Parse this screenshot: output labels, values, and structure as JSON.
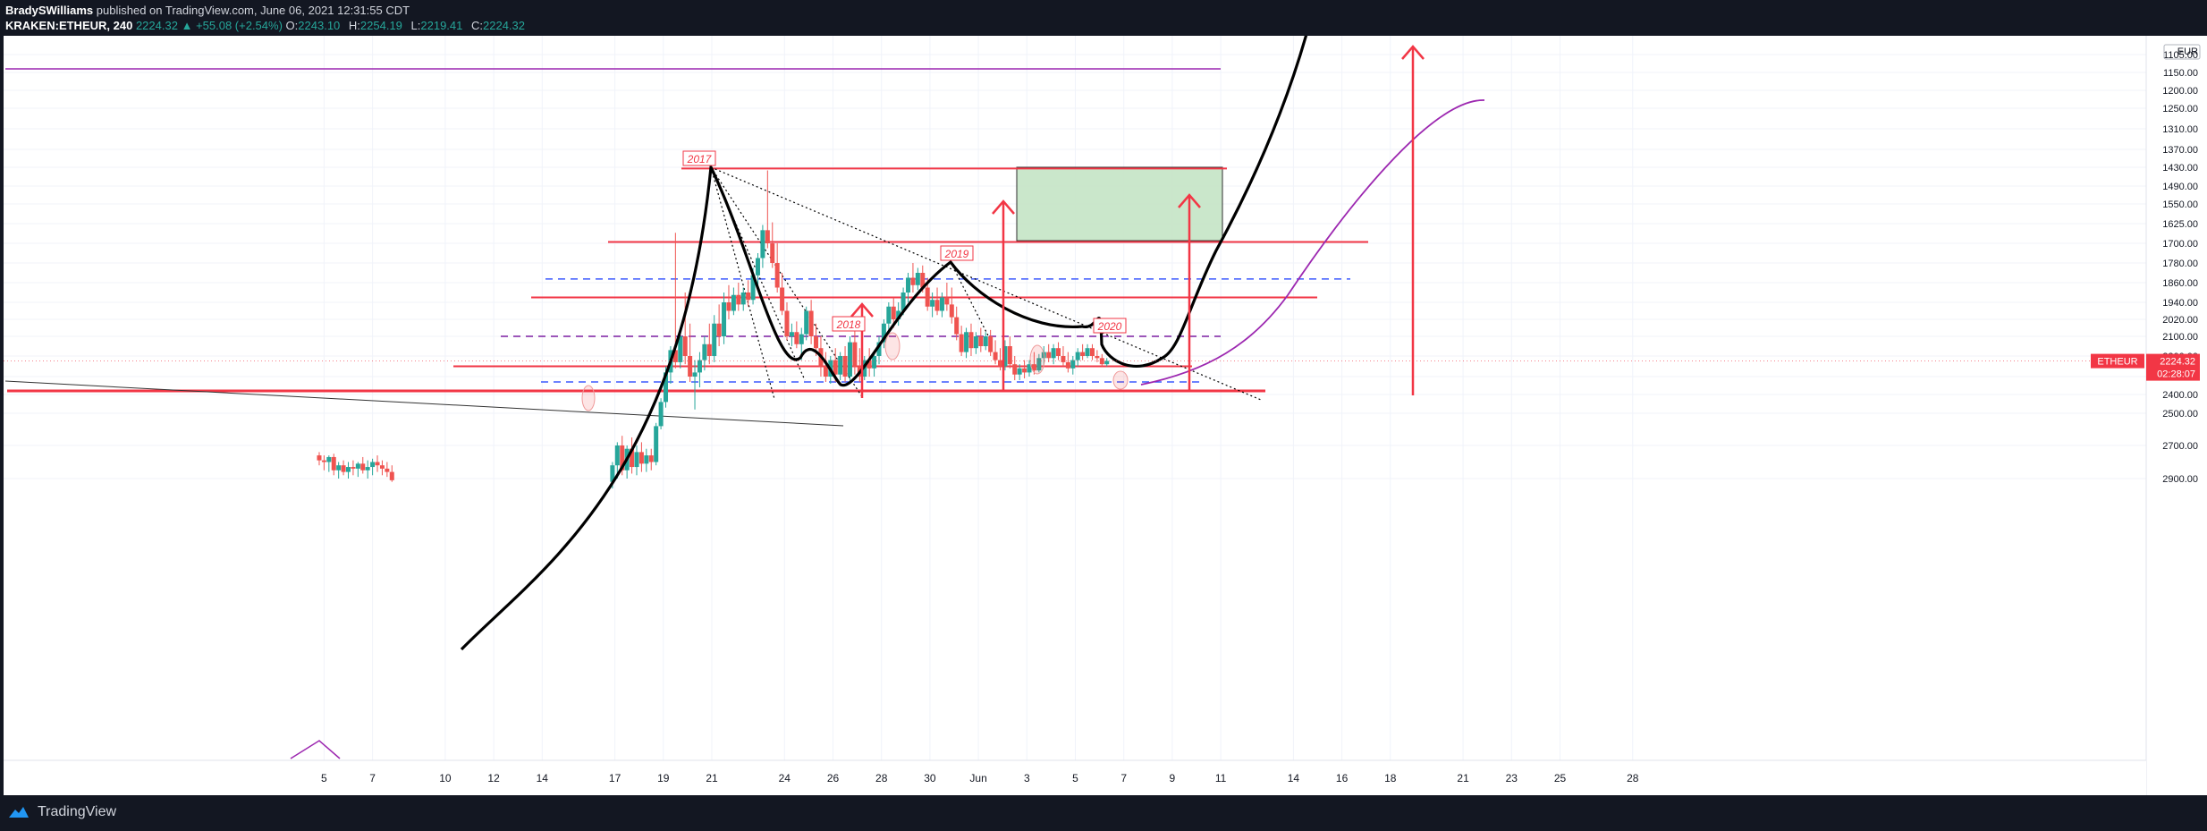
{
  "header": {
    "author": "BradySWilliams",
    "published": "published on TradingView.com, June 06, 2021 12:31:55 CDT",
    "symbol": "KRAKEN:ETHEUR, 240",
    "last": "2224.32",
    "change": "+55.08 (+2.54%)",
    "o_label": "O:",
    "o_value": "2243.10",
    "h_label": "H:",
    "h_value": "2254.19",
    "l_label": "L:",
    "l_value": "2219.41",
    "c_label": "C:",
    "c_value": "2224.32"
  },
  "footer": {
    "brand": "TradingView"
  },
  "colors": {
    "background": "#131722",
    "chart_bg": "#ffffff",
    "up": "#26a69a",
    "down": "#ef5350",
    "level": "#f23645",
    "purple": "#9c27b0",
    "dashed_blue": "#3d5afe",
    "dashed_purple": "#7b1fa2",
    "target_box": "#c8e6c9",
    "curve": "#000000"
  },
  "chart_data": {
    "type": "candlestick",
    "instrument": "ETHEUR",
    "timeframe": "240",
    "currency": "EUR",
    "y_axis": {
      "invert": true,
      "ticks": [
        {
          "label": "1105.00",
          "value": 1105
        },
        {
          "label": "1150.00",
          "value": 1150
        },
        {
          "label": "1200.00",
          "value": 1200
        },
        {
          "label": "1250.00",
          "value": 1250
        },
        {
          "label": "1310.00",
          "value": 1310
        },
        {
          "label": "1370.00",
          "value": 1370
        },
        {
          "label": "1430.00",
          "value": 1430
        },
        {
          "label": "1490.00",
          "value": 1490
        },
        {
          "label": "1550.00",
          "value": 1550
        },
        {
          "label": "1625.00",
          "value": 1625
        },
        {
          "label": "1700.00",
          "value": 1700
        },
        {
          "label": "1780.00",
          "value": 1780
        },
        {
          "label": "1860.00",
          "value": 1860
        },
        {
          "label": "1940.00",
          "value": 1940
        },
        {
          "label": "2020.00",
          "value": 2020
        },
        {
          "label": "2100.00",
          "value": 2100
        },
        {
          "label": "2200.00",
          "value": 2200
        },
        {
          "label": "2300.00",
          "value": 2300
        },
        {
          "label": "2400.00",
          "value": 2400
        },
        {
          "label": "2500.00",
          "value": 2500
        },
        {
          "label": "2700.00",
          "value": 2700
        },
        {
          "label": "2900.00",
          "value": 2900
        }
      ]
    },
    "x_axis": {
      "ticks": [
        {
          "label": "5",
          "day": 5
        },
        {
          "label": "7",
          "day": 7
        },
        {
          "label": "10",
          "day": 10
        },
        {
          "label": "12",
          "day": 12
        },
        {
          "label": "14",
          "day": 14
        },
        {
          "label": "17",
          "day": 17
        },
        {
          "label": "19",
          "day": 19
        },
        {
          "label": "21",
          "day": 21
        },
        {
          "label": "24",
          "day": 24
        },
        {
          "label": "26",
          "day": 26
        },
        {
          "label": "28",
          "day": 28
        },
        {
          "label": "30",
          "day": 30
        },
        {
          "label": "Jun",
          "day": 32
        },
        {
          "label": "3",
          "day": 34
        },
        {
          "label": "5",
          "day": 36
        },
        {
          "label": "7",
          "day": 38
        },
        {
          "label": "9",
          "day": 40
        },
        {
          "label": "11",
          "day": 42
        },
        {
          "label": "14",
          "day": 45
        },
        {
          "label": "16",
          "day": 47
        },
        {
          "label": "18",
          "day": 49
        },
        {
          "label": "21",
          "day": 52
        },
        {
          "label": "23",
          "day": 54
        },
        {
          "label": "25",
          "day": 56
        },
        {
          "label": "28",
          "day": 59
        }
      ]
    },
    "last_price_tag": {
      "symbol": "ETHEUR",
      "price": "2224.32",
      "countdown": "02:28:07",
      "value": 2224.32
    },
    "annotations": [
      "2017",
      "2018",
      "2019",
      "2020"
    ],
    "target_zone": {
      "price_top": 1430,
      "price_bottom": 1690
    },
    "series": [
      {
        "day": 4.8,
        "o": 2760,
        "h": 2740,
        "l": 2820,
        "c": 2790
      },
      {
        "day": 5.0,
        "o": 2790,
        "h": 2760,
        "l": 2850,
        "c": 2800
      },
      {
        "day": 5.2,
        "o": 2800,
        "h": 2760,
        "l": 2860,
        "c": 2770
      },
      {
        "day": 5.4,
        "o": 2770,
        "h": 2750,
        "l": 2880,
        "c": 2850
      },
      {
        "day": 5.6,
        "o": 2850,
        "h": 2800,
        "l": 2900,
        "c": 2820
      },
      {
        "day": 5.8,
        "o": 2820,
        "h": 2790,
        "l": 2880,
        "c": 2860
      },
      {
        "day": 6.0,
        "o": 2860,
        "h": 2800,
        "l": 2900,
        "c": 2830
      },
      {
        "day": 6.2,
        "o": 2830,
        "h": 2790,
        "l": 2880,
        "c": 2840
      },
      {
        "day": 6.4,
        "o": 2840,
        "h": 2800,
        "l": 2890,
        "c": 2810
      },
      {
        "day": 6.6,
        "o": 2810,
        "h": 2770,
        "l": 2870,
        "c": 2850
      },
      {
        "day": 6.8,
        "o": 2850,
        "h": 2790,
        "l": 2900,
        "c": 2830
      },
      {
        "day": 7.0,
        "o": 2830,
        "h": 2780,
        "l": 2880,
        "c": 2800
      },
      {
        "day": 7.2,
        "o": 2800,
        "h": 2760,
        "l": 2860,
        "c": 2820
      },
      {
        "day": 7.4,
        "o": 2820,
        "h": 2790,
        "l": 2880,
        "c": 2840
      },
      {
        "day": 7.6,
        "o": 2840,
        "h": 2800,
        "l": 2890,
        "c": 2860
      },
      {
        "day": 7.8,
        "o": 2860,
        "h": 2820,
        "l": 2920,
        "c": 2910
      },
      {
        "day": 16.9,
        "o": 2920,
        "h": 2800,
        "l": 2960,
        "c": 2820
      },
      {
        "day": 17.1,
        "o": 2820,
        "h": 2680,
        "l": 2900,
        "c": 2700
      },
      {
        "day": 17.3,
        "o": 2700,
        "h": 2640,
        "l": 2880,
        "c": 2850
      },
      {
        "day": 17.5,
        "o": 2850,
        "h": 2700,
        "l": 2900,
        "c": 2720
      },
      {
        "day": 17.7,
        "o": 2720,
        "h": 2650,
        "l": 2870,
        "c": 2830
      },
      {
        "day": 17.9,
        "o": 2830,
        "h": 2700,
        "l": 2880,
        "c": 2740
      },
      {
        "day": 18.1,
        "o": 2740,
        "h": 2680,
        "l": 2860,
        "c": 2810
      },
      {
        "day": 18.3,
        "o": 2810,
        "h": 2720,
        "l": 2860,
        "c": 2760
      },
      {
        "day": 18.5,
        "o": 2760,
        "h": 2720,
        "l": 2850,
        "c": 2800
      },
      {
        "day": 18.7,
        "o": 2800,
        "h": 2560,
        "l": 2820,
        "c": 2580
      },
      {
        "day": 18.9,
        "o": 2580,
        "h": 2420,
        "l": 2600,
        "c": 2440
      },
      {
        "day": 19.1,
        "o": 2440,
        "h": 2250,
        "l": 2470,
        "c": 2280
      },
      {
        "day": 19.3,
        "o": 2280,
        "h": 2150,
        "l": 2340,
        "c": 2170
      },
      {
        "day": 19.5,
        "o": 2170,
        "h": 1660,
        "l": 2260,
        "c": 2230
      },
      {
        "day": 19.7,
        "o": 2230,
        "h": 2080,
        "l": 2260,
        "c": 2100
      },
      {
        "day": 19.9,
        "o": 2100,
        "h": 1900,
        "l": 2240,
        "c": 2200
      },
      {
        "day": 20.1,
        "o": 2200,
        "h": 2040,
        "l": 2330,
        "c": 2300
      },
      {
        "day": 20.3,
        "o": 2300,
        "h": 2220,
        "l": 2480,
        "c": 2280
      },
      {
        "day": 20.5,
        "o": 2280,
        "h": 2180,
        "l": 2360,
        "c": 2220
      },
      {
        "day": 20.7,
        "o": 2220,
        "h": 2100,
        "l": 2270,
        "c": 2140
      },
      {
        "day": 20.9,
        "o": 2140,
        "h": 2040,
        "l": 2240,
        "c": 2200
      },
      {
        "day": 21.1,
        "o": 2200,
        "h": 2000,
        "l": 2230,
        "c": 2040
      },
      {
        "day": 21.3,
        "o": 2040,
        "h": 1950,
        "l": 2150,
        "c": 2100
      },
      {
        "day": 21.5,
        "o": 2100,
        "h": 1900,
        "l": 2140,
        "c": 1940
      },
      {
        "day": 21.7,
        "o": 1940,
        "h": 1870,
        "l": 2020,
        "c": 1980
      },
      {
        "day": 21.9,
        "o": 1980,
        "h": 1880,
        "l": 2000,
        "c": 1910
      },
      {
        "day": 22.1,
        "o": 1910,
        "h": 1860,
        "l": 1980,
        "c": 1950
      },
      {
        "day": 22.3,
        "o": 1950,
        "h": 1880,
        "l": 1980,
        "c": 1900
      },
      {
        "day": 22.5,
        "o": 1900,
        "h": 1850,
        "l": 1960,
        "c": 1930
      },
      {
        "day": 22.7,
        "o": 1930,
        "h": 1800,
        "l": 1950,
        "c": 1830
      },
      {
        "day": 22.9,
        "o": 1830,
        "h": 1740,
        "l": 1870,
        "c": 1760
      },
      {
        "day": 23.1,
        "o": 1760,
        "h": 1630,
        "l": 1800,
        "c": 1650
      },
      {
        "day": 23.3,
        "o": 1650,
        "h": 1440,
        "l": 1720,
        "c": 1700
      },
      {
        "day": 23.5,
        "o": 1700,
        "h": 1620,
        "l": 1800,
        "c": 1780
      },
      {
        "day": 23.7,
        "o": 1780,
        "h": 1700,
        "l": 1900,
        "c": 1880
      },
      {
        "day": 23.9,
        "o": 1880,
        "h": 1820,
        "l": 2000,
        "c": 1980
      },
      {
        "day": 24.1,
        "o": 1980,
        "h": 1940,
        "l": 2120,
        "c": 2100
      },
      {
        "day": 24.3,
        "o": 2100,
        "h": 2040,
        "l": 2150,
        "c": 2080
      },
      {
        "day": 24.5,
        "o": 2080,
        "h": 2030,
        "l": 2160,
        "c": 2140
      },
      {
        "day": 24.7,
        "o": 2140,
        "h": 2060,
        "l": 2220,
        "c": 2090
      },
      {
        "day": 24.9,
        "o": 2090,
        "h": 1960,
        "l": 2120,
        "c": 1980
      },
      {
        "day": 25.1,
        "o": 1980,
        "h": 1930,
        "l": 2140,
        "c": 2100
      },
      {
        "day": 25.3,
        "o": 2100,
        "h": 2040,
        "l": 2200,
        "c": 2160
      },
      {
        "day": 25.5,
        "o": 2160,
        "h": 2100,
        "l": 2300,
        "c": 2250
      },
      {
        "day": 25.7,
        "o": 2250,
        "h": 2180,
        "l": 2330,
        "c": 2300
      },
      {
        "day": 25.9,
        "o": 2300,
        "h": 2200,
        "l": 2340,
        "c": 2220
      },
      {
        "day": 26.1,
        "o": 2220,
        "h": 2160,
        "l": 2330,
        "c": 2290
      },
      {
        "day": 26.3,
        "o": 2290,
        "h": 2180,
        "l": 2320,
        "c": 2200
      },
      {
        "day": 26.5,
        "o": 2200,
        "h": 2150,
        "l": 2330,
        "c": 2300
      },
      {
        "day": 26.7,
        "o": 2300,
        "h": 2100,
        "l": 2340,
        "c": 2130
      },
      {
        "day": 26.9,
        "o": 2130,
        "h": 2060,
        "l": 2290,
        "c": 2250
      },
      {
        "day": 27.1,
        "o": 2250,
        "h": 2160,
        "l": 2330,
        "c": 2300
      },
      {
        "day": 27.3,
        "o": 2300,
        "h": 2200,
        "l": 2320,
        "c": 2220
      },
      {
        "day": 27.5,
        "o": 2220,
        "h": 2160,
        "l": 2300,
        "c": 2260
      },
      {
        "day": 27.7,
        "o": 2260,
        "h": 2180,
        "l": 2300,
        "c": 2200
      },
      {
        "day": 27.9,
        "o": 2200,
        "h": 2100,
        "l": 2240,
        "c": 2130
      },
      {
        "day": 28.1,
        "o": 2130,
        "h": 2020,
        "l": 2160,
        "c": 2040
      },
      {
        "day": 28.3,
        "o": 2040,
        "h": 1940,
        "l": 2080,
        "c": 1960
      },
      {
        "day": 28.5,
        "o": 1960,
        "h": 1920,
        "l": 2060,
        "c": 2020
      },
      {
        "day": 28.7,
        "o": 2020,
        "h": 1940,
        "l": 2050,
        "c": 1980
      },
      {
        "day": 28.9,
        "o": 1980,
        "h": 1880,
        "l": 2000,
        "c": 1900
      },
      {
        "day": 29.1,
        "o": 1900,
        "h": 1820,
        "l": 1940,
        "c": 1840
      },
      {
        "day": 29.3,
        "o": 1840,
        "h": 1780,
        "l": 1900,
        "c": 1870
      },
      {
        "day": 29.5,
        "o": 1870,
        "h": 1800,
        "l": 1890,
        "c": 1820
      },
      {
        "day": 29.7,
        "o": 1820,
        "h": 1790,
        "l": 1900,
        "c": 1880
      },
      {
        "day": 29.9,
        "o": 1880,
        "h": 1840,
        "l": 1980,
        "c": 1960
      },
      {
        "day": 30.1,
        "o": 1960,
        "h": 1900,
        "l": 2010,
        "c": 1930
      },
      {
        "day": 30.3,
        "o": 1930,
        "h": 1880,
        "l": 2000,
        "c": 1980
      },
      {
        "day": 30.5,
        "o": 1980,
        "h": 1900,
        "l": 2010,
        "c": 1920
      },
      {
        "day": 30.7,
        "o": 1920,
        "h": 1860,
        "l": 1980,
        "c": 1950
      },
      {
        "day": 30.9,
        "o": 1950,
        "h": 1880,
        "l": 2040,
        "c": 2010
      },
      {
        "day": 31.1,
        "o": 2010,
        "h": 1960,
        "l": 2120,
        "c": 2090
      },
      {
        "day": 31.3,
        "o": 2090,
        "h": 2050,
        "l": 2200,
        "c": 2180
      },
      {
        "day": 31.5,
        "o": 2180,
        "h": 2060,
        "l": 2210,
        "c": 2080
      },
      {
        "day": 31.7,
        "o": 2080,
        "h": 2040,
        "l": 2200,
        "c": 2160
      },
      {
        "day": 31.9,
        "o": 2160,
        "h": 2080,
        "l": 2190,
        "c": 2100
      },
      {
        "day": 32.1,
        "o": 2100,
        "h": 2060,
        "l": 2180,
        "c": 2150
      },
      {
        "day": 32.3,
        "o": 2150,
        "h": 2080,
        "l": 2170,
        "c": 2100
      },
      {
        "day": 32.5,
        "o": 2100,
        "h": 2070,
        "l": 2200,
        "c": 2180
      },
      {
        "day": 32.7,
        "o": 2180,
        "h": 2120,
        "l": 2240,
        "c": 2220
      },
      {
        "day": 32.9,
        "o": 2220,
        "h": 2160,
        "l": 2270,
        "c": 2250
      },
      {
        "day": 33.1,
        "o": 2250,
        "h": 2120,
        "l": 2270,
        "c": 2150
      },
      {
        "day": 33.3,
        "o": 2150,
        "h": 2100,
        "l": 2260,
        "c": 2240
      },
      {
        "day": 33.5,
        "o": 2240,
        "h": 2200,
        "l": 2320,
        "c": 2290
      },
      {
        "day": 33.7,
        "o": 2290,
        "h": 2240,
        "l": 2320,
        "c": 2260
      },
      {
        "day": 33.9,
        "o": 2260,
        "h": 2220,
        "l": 2310,
        "c": 2280
      },
      {
        "day": 34.1,
        "o": 2280,
        "h": 2220,
        "l": 2300,
        "c": 2240
      },
      {
        "day": 34.3,
        "o": 2240,
        "h": 2180,
        "l": 2290,
        "c": 2270
      },
      {
        "day": 34.5,
        "o": 2270,
        "h": 2190,
        "l": 2280,
        "c": 2210
      },
      {
        "day": 34.7,
        "o": 2210,
        "h": 2150,
        "l": 2250,
        "c": 2180
      },
      {
        "day": 34.9,
        "o": 2180,
        "h": 2140,
        "l": 2230,
        "c": 2210
      },
      {
        "day": 35.1,
        "o": 2210,
        "h": 2140,
        "l": 2240,
        "c": 2160
      },
      {
        "day": 35.3,
        "o": 2160,
        "h": 2130,
        "l": 2220,
        "c": 2200
      },
      {
        "day": 35.5,
        "o": 2200,
        "h": 2150,
        "l": 2250,
        "c": 2230
      },
      {
        "day": 35.7,
        "o": 2230,
        "h": 2180,
        "l": 2280,
        "c": 2260
      },
      {
        "day": 35.9,
        "o": 2260,
        "h": 2200,
        "l": 2290,
        "c": 2220
      },
      {
        "day": 36.1,
        "o": 2220,
        "h": 2160,
        "l": 2250,
        "c": 2180
      },
      {
        "day": 36.3,
        "o": 2180,
        "h": 2140,
        "l": 2220,
        "c": 2200
      },
      {
        "day": 36.5,
        "o": 2200,
        "h": 2140,
        "l": 2210,
        "c": 2160
      },
      {
        "day": 36.7,
        "o": 2160,
        "h": 2140,
        "l": 2220,
        "c": 2200
      },
      {
        "day": 36.9,
        "o": 2200,
        "h": 2170,
        "l": 2230,
        "c": 2210
      },
      {
        "day": 37.1,
        "o": 2210,
        "h": 2190,
        "l": 2250,
        "c": 2240
      },
      {
        "day": 37.3,
        "o": 2240,
        "h": 2210,
        "l": 2250,
        "c": 2224
      }
    ]
  }
}
